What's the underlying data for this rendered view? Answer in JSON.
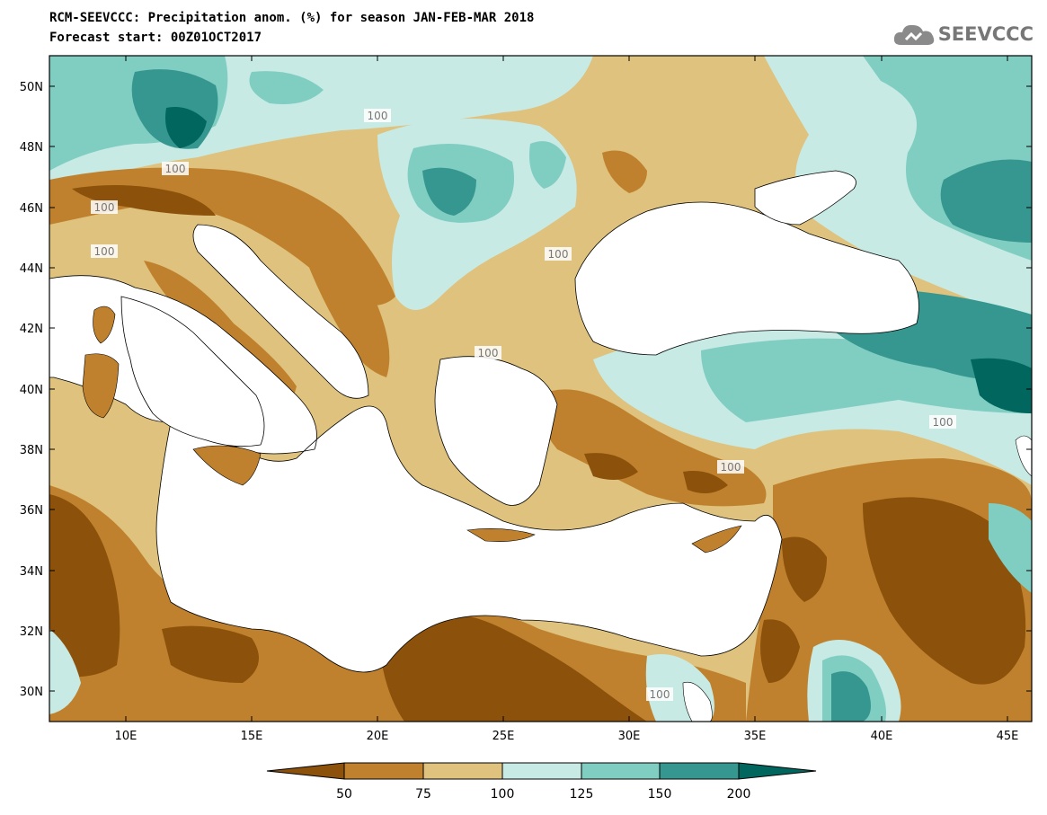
{
  "header": {
    "title_line1": "RCM-SEEVCCC: Precipitation anom. (%) for season JAN-FEB-MAR 2018",
    "title_line2": "Forecast start: 00Z01OCT2017"
  },
  "logo": {
    "text": "SEEVCCC",
    "icon": "cloud-icon"
  },
  "map": {
    "lat_labels": [
      "50N",
      "48N",
      "46N",
      "44N",
      "42N",
      "40N",
      "38N",
      "36N",
      "34N",
      "32N",
      "30N"
    ],
    "lon_labels": [
      "10E",
      "15E",
      "20E",
      "25E",
      "30E",
      "35E",
      "40E",
      "45E"
    ],
    "contour_labels": [
      "100",
      "100",
      "100",
      "100",
      "100",
      "100",
      "100",
      "100",
      "100"
    ]
  },
  "colorbar": {
    "labels": [
      "50",
      "75",
      "100",
      "125",
      "150",
      "200"
    ],
    "colors": [
      "#8c510a",
      "#bf812d",
      "#dfc27d",
      "#c7eae5",
      "#80cdc1",
      "#35978f",
      "#01665e"
    ]
  },
  "colors": {
    "land_neutral": "#dfc27d",
    "sea": "#ffffff",
    "dry_strong": "#8c510a",
    "dry": "#bf812d",
    "wet_light": "#c7eae5",
    "wet": "#80cdc1",
    "wet_strong": "#35978f",
    "wet_extreme": "#01665e"
  }
}
